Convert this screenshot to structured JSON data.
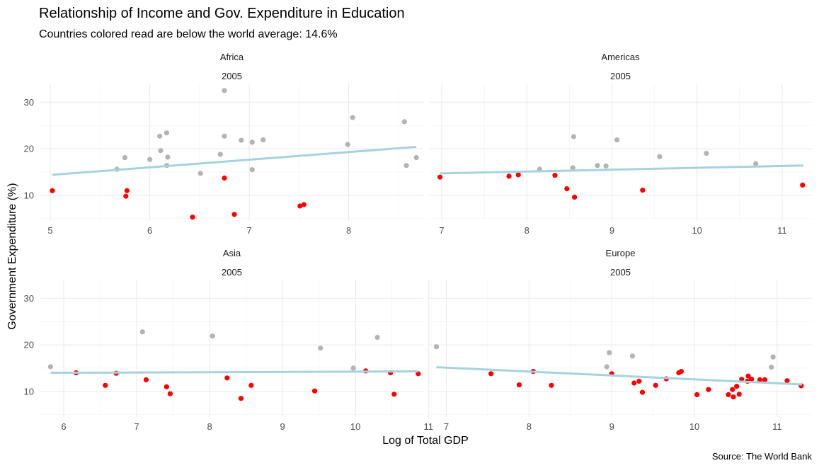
{
  "title": "Relationship of Income and Gov. Expenditure in Education",
  "subtitle": "Countries colored read are below the world average: 14.6%",
  "caption": "Source: The World Bank",
  "colors": {
    "below": "#ff0000",
    "above": "#b3b3b3",
    "trend": "#a6d2e0"
  },
  "chart_data": {
    "type": "scatter",
    "xlabel": "Log of Total GDP",
    "ylabel": "Government Expenditure (%)",
    "ylim": [
      4.5,
      34
    ],
    "y_ticks": [
      10,
      20,
      30
    ],
    "threshold": 14.6,
    "grid": true,
    "facets": [
      {
        "region": "Africa",
        "year": "2005",
        "xlim": [
          4.9,
          8.75
        ],
        "x_ticks": [
          5,
          6,
          7,
          8
        ],
        "trend": [
          [
            5.02,
            14.4
          ],
          [
            8.68,
            20.4
          ]
        ],
        "points": [
          [
            5.02,
            11.0
          ],
          [
            5.67,
            15.6
          ],
          [
            5.75,
            18.1
          ],
          [
            5.76,
            9.8
          ],
          [
            5.77,
            11.0
          ],
          [
            6.0,
            17.7
          ],
          [
            6.1,
            22.7
          ],
          [
            6.11,
            19.6
          ],
          [
            6.17,
            23.4
          ],
          [
            6.18,
            18.2
          ],
          [
            6.17,
            16.4
          ],
          [
            6.43,
            5.3
          ],
          [
            6.51,
            14.7
          ],
          [
            6.71,
            18.8
          ],
          [
            6.75,
            22.7
          ],
          [
            6.75,
            32.5
          ],
          [
            6.75,
            13.7
          ],
          [
            6.85,
            5.9
          ],
          [
            6.92,
            21.8
          ],
          [
            7.03,
            21.4
          ],
          [
            7.03,
            15.5
          ],
          [
            7.14,
            21.9
          ],
          [
            7.51,
            7.7
          ],
          [
            7.55,
            8.0
          ],
          [
            7.99,
            20.9
          ],
          [
            8.04,
            26.7
          ],
          [
            8.56,
            25.8
          ],
          [
            8.58,
            16.4
          ],
          [
            8.68,
            18.1
          ]
        ]
      },
      {
        "region": "Americas",
        "year": "2005",
        "xlim": [
          6.85,
          11.35
        ],
        "x_ticks": [
          7,
          8,
          9,
          10,
          11
        ],
        "trend": [
          [
            6.98,
            14.7
          ],
          [
            11.25,
            16.4
          ]
        ],
        "points": [
          [
            6.98,
            13.9
          ],
          [
            7.79,
            14.1
          ],
          [
            7.9,
            14.4
          ],
          [
            8.15,
            15.6
          ],
          [
            8.33,
            14.3
          ],
          [
            8.47,
            11.4
          ],
          [
            8.54,
            15.9
          ],
          [
            8.55,
            22.6
          ],
          [
            8.56,
            9.6
          ],
          [
            8.83,
            16.4
          ],
          [
            8.93,
            16.3
          ],
          [
            9.06,
            21.9
          ],
          [
            9.36,
            11.1
          ],
          [
            9.56,
            18.3
          ],
          [
            10.11,
            19.0
          ],
          [
            10.69,
            16.8
          ],
          [
            11.24,
            12.2
          ]
        ]
      },
      {
        "region": "Asia",
        "year": "2005",
        "xlim": [
          5.68,
          10.93
        ],
        "x_ticks": [
          6,
          7,
          8,
          9,
          10,
          11
        ],
        "trend": [
          [
            5.82,
            14.0
          ],
          [
            10.86,
            14.3
          ]
        ],
        "points": [
          [
            5.82,
            15.3
          ],
          [
            6.17,
            14.0
          ],
          [
            6.57,
            11.3
          ],
          [
            6.72,
            13.9
          ],
          [
            7.08,
            22.8
          ],
          [
            7.13,
            12.5
          ],
          [
            7.41,
            11.0
          ],
          [
            7.46,
            9.5
          ],
          [
            8.04,
            21.9
          ],
          [
            8.24,
            12.9
          ],
          [
            8.43,
            8.5
          ],
          [
            8.57,
            11.3
          ],
          [
            9.44,
            10.1
          ],
          [
            9.52,
            19.3
          ],
          [
            9.97,
            15.0
          ],
          [
            10.14,
            14.4
          ],
          [
            10.3,
            21.6
          ],
          [
            10.48,
            14.0
          ],
          [
            10.53,
            9.4
          ],
          [
            10.86,
            13.8
          ]
        ]
      },
      {
        "region": "Europe",
        "year": "2005",
        "xlim": [
          6.79,
          11.42
        ],
        "x_ticks": [
          7,
          8,
          9,
          10,
          11
        ],
        "trend": [
          [
            6.88,
            15.2
          ],
          [
            11.3,
            11.5
          ]
        ],
        "points": [
          [
            6.88,
            19.6
          ],
          [
            7.54,
            13.8
          ],
          [
            7.88,
            11.4
          ],
          [
            8.05,
            14.3
          ],
          [
            8.27,
            11.3
          ],
          [
            8.94,
            15.3
          ],
          [
            8.97,
            18.3
          ],
          [
            9.0,
            13.8
          ],
          [
            9.25,
            17.6
          ],
          [
            9.27,
            11.8
          ],
          [
            9.33,
            12.2
          ],
          [
            9.37,
            9.8
          ],
          [
            9.53,
            11.3
          ],
          [
            9.66,
            12.7
          ],
          [
            9.81,
            14.0
          ],
          [
            9.84,
            14.3
          ],
          [
            10.03,
            9.3
          ],
          [
            10.17,
            10.4
          ],
          [
            10.41,
            9.3
          ],
          [
            10.46,
            10.4
          ],
          [
            10.47,
            8.8
          ],
          [
            10.51,
            11.1
          ],
          [
            10.54,
            9.4
          ],
          [
            10.57,
            12.6
          ],
          [
            10.64,
            12.2
          ],
          [
            10.65,
            13.3
          ],
          [
            10.69,
            12.6
          ],
          [
            10.79,
            12.5
          ],
          [
            10.85,
            12.5
          ],
          [
            10.93,
            15.2
          ],
          [
            10.95,
            17.4
          ],
          [
            11.12,
            12.3
          ],
          [
            11.29,
            11.2
          ]
        ]
      }
    ]
  }
}
